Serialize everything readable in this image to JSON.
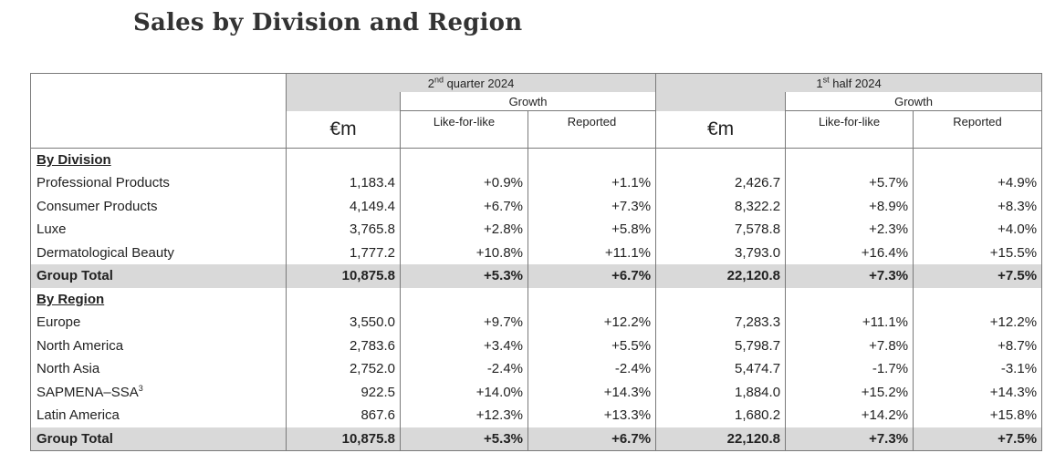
{
  "title": "Sales by Division and Region",
  "periods": [
    {
      "label": "quarter 2024",
      "num": "2",
      "sup": "nd"
    },
    {
      "label": "half 2024",
      "num": "1",
      "sup": "st"
    }
  ],
  "headers": {
    "growth": "Growth",
    "currency": "€m",
    "lfl": "Like-for-like",
    "reported": "Reported"
  },
  "division": {
    "heading": "By Division",
    "rows": [
      {
        "label": "Professional Products",
        "values": [
          "1,183.4",
          "+0.9%",
          "+1.1%",
          "2,426.7",
          "+5.7%",
          "+4.9%"
        ]
      },
      {
        "label": "Consumer Products",
        "values": [
          "4,149.4",
          "+6.7%",
          "+7.3%",
          "8,322.2",
          "+8.9%",
          "+8.3%"
        ]
      },
      {
        "label": "Luxe",
        "values": [
          "3,765.8",
          "+2.8%",
          "+5.8%",
          "7,578.8",
          "+2.3%",
          "+4.0%"
        ]
      },
      {
        "label": "Dermatological Beauty",
        "values": [
          "1,777.2",
          "+10.8%",
          "+11.1%",
          "3,793.0",
          "+16.4%",
          "+15.5%"
        ]
      }
    ],
    "total": {
      "label": "Group Total",
      "values": [
        "10,875.8",
        "+5.3%",
        "+6.7%",
        "22,120.8",
        "+7.3%",
        "+7.5%"
      ]
    }
  },
  "region": {
    "heading": "By Region",
    "rows": [
      {
        "label": "Europe",
        "values": [
          "3,550.0",
          "+9.7%",
          "+12.2%",
          "7,283.3",
          "+11.1%",
          "+12.2%"
        ]
      },
      {
        "label": "North America",
        "values": [
          "2,783.6",
          "+3.4%",
          "+5.5%",
          "5,798.7",
          "+7.8%",
          "+8.7%"
        ]
      },
      {
        "label": "North Asia",
        "values": [
          "2,752.0",
          "-2.4%",
          "-2.4%",
          "5,474.7",
          "-1.7%",
          "-3.1%"
        ]
      },
      {
        "label": "SAPMENA–SSA",
        "footnote": "3",
        "values": [
          "922.5",
          "+14.0%",
          "+14.3%",
          "1,884.0",
          "+15.2%",
          "+14.3%"
        ]
      },
      {
        "label": "Latin America",
        "values": [
          "867.6",
          "+12.3%",
          "+13.3%",
          "1,680.2",
          "+14.2%",
          "+15.8%"
        ]
      }
    ],
    "total": {
      "label": "Group Total",
      "values": [
        "10,875.8",
        "+5.3%",
        "+6.7%",
        "22,120.8",
        "+7.3%",
        "+7.5%"
      ]
    }
  }
}
